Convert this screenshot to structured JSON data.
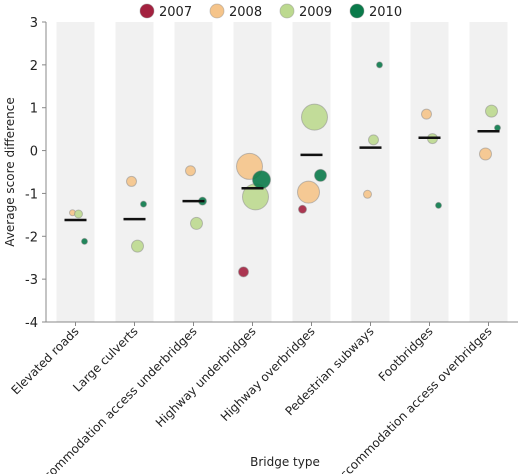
{
  "chart_data": {
    "type": "bubble",
    "categories": [
      "Elevated roads",
      "Large culverts",
      "Accommodation access underbridges",
      "Highway underbridges",
      "Highway overbridges",
      "Pedestrian subways",
      "Footbridges",
      "Accommodation access overbridges"
    ],
    "series": [
      {
        "name": "2007",
        "color": "#a3213f",
        "values": [
          null,
          null,
          null,
          -2.83,
          -1.37,
          null,
          null,
          null
        ],
        "sizes": [
          null,
          null,
          null,
          5,
          4,
          null,
          null,
          null
        ]
      },
      {
        "name": "2008",
        "color": "#f5c48a",
        "values": [
          -1.45,
          -0.72,
          -0.47,
          -0.37,
          -0.97,
          -1.02,
          0.85,
          -0.08
        ],
        "sizes": [
          3,
          5,
          5,
          13,
          11,
          4,
          5,
          6
        ]
      },
      {
        "name": "2009",
        "color": "#bcd98f",
        "values": [
          -1.48,
          -2.23,
          -1.7,
          -1.08,
          0.78,
          0.25,
          0.28,
          0.92
        ],
        "sizes": [
          4,
          6,
          6,
          13,
          13,
          5,
          5,
          6
        ]
      },
      {
        "name": "2010",
        "color": "#0a7a4a",
        "values": [
          -2.12,
          -1.25,
          -1.18,
          -0.68,
          -0.58,
          2.0,
          -1.28,
          0.53
        ],
        "sizes": [
          3,
          3,
          4,
          9,
          6,
          3,
          3,
          3
        ]
      }
    ],
    "means": [
      -1.62,
      -1.6,
      -1.18,
      -0.88,
      -0.1,
      0.07,
      0.3,
      0.45
    ],
    "ylabel": "Average score difference",
    "xlabel": "Bridge type",
    "ylim": [
      -4,
      3
    ],
    "yticks": [
      -4,
      -3,
      -2,
      -1,
      0,
      1,
      2,
      3
    ]
  }
}
